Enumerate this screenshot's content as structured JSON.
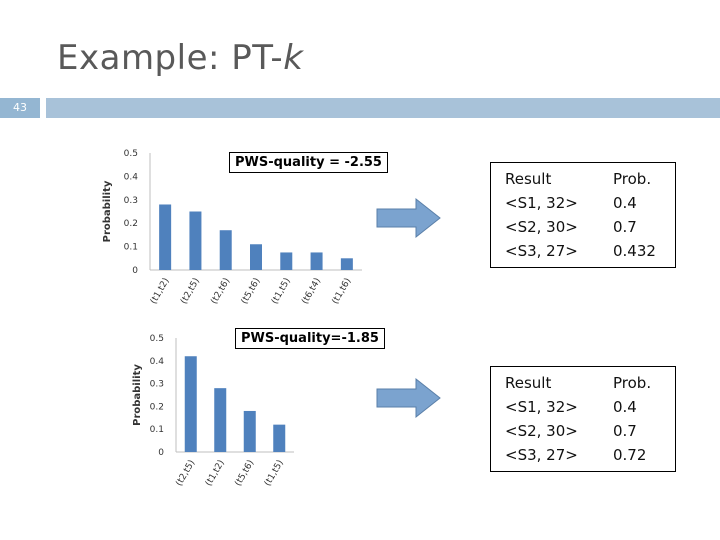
{
  "slide": {
    "title_main": "Example: PT-",
    "title_italic": "k",
    "number": "43"
  },
  "colors": {
    "bar": "#4f81bd",
    "arrow": "#7ba3cf",
    "top_bar": "#a8c2d9"
  },
  "chart_data": [
    {
      "type": "bar",
      "title": "",
      "xlabel": "",
      "ylabel": "Probability",
      "ylim": [
        0,
        0.5
      ],
      "yticks": [
        "0",
        "0.1",
        "0.2",
        "0.3",
        "0.4",
        "0.5"
      ],
      "categories": [
        "(t1,t2)",
        "(t2,t5)",
        "(t2,t6)",
        "(t5,t6)",
        "(t1,t5)",
        "(t6,t4)",
        "(t1,t6)"
      ],
      "values": [
        0.28,
        0.25,
        0.17,
        0.11,
        0.075,
        0.075,
        0.05
      ],
      "grid": false,
      "annotation": "PWS-quality = -2.55"
    },
    {
      "type": "bar",
      "title": "",
      "xlabel": "",
      "ylabel": "Probability",
      "ylim": [
        0,
        0.5
      ],
      "yticks": [
        "0",
        "0.1",
        "0.2",
        "0.3",
        "0.4",
        "0.5"
      ],
      "categories": [
        "(t2,t5)",
        "(t1,t2)",
        "(t5,t6)",
        "(t1,t5)"
      ],
      "values": [
        0.42,
        0.28,
        0.18,
        0.12
      ],
      "grid": false,
      "annotation": "PWS-quality=-1.85"
    }
  ],
  "results": [
    {
      "header_result": "Result",
      "header_prob": "Prob.",
      "rows": [
        {
          "result": "<S1, 32>",
          "prob": "0.4"
        },
        {
          "result": "<S2, 30>",
          "prob": "0.7"
        },
        {
          "result": "<S3, 27>",
          "prob": "0.432"
        }
      ]
    },
    {
      "header_result": "Result",
      "header_prob": "Prob.",
      "rows": [
        {
          "result": "<S1, 32>",
          "prob": "0.4"
        },
        {
          "result": "<S2, 30>",
          "prob": "0.7"
        },
        {
          "result": "<S3, 27>",
          "prob": "0.72"
        }
      ]
    }
  ]
}
